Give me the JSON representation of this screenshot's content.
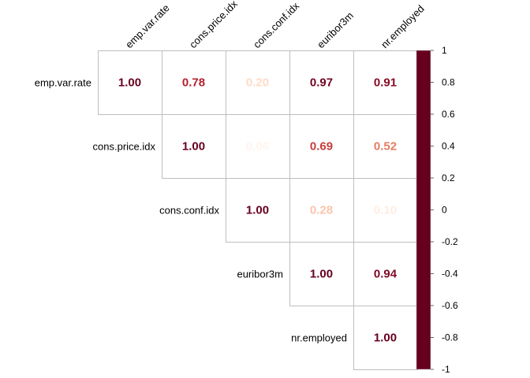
{
  "chart_data": {
    "type": "heatmap",
    "subtype": "upper-triangular correlation matrix",
    "variables": [
      "emp.var.rate",
      "cons.price.idx",
      "cons.conf.idx",
      "euribor3m",
      "nr.employed"
    ],
    "matrix": [
      [
        1.0,
        0.78,
        0.2,
        0.97,
        0.91
      ],
      [
        null,
        1.0,
        0.06,
        0.69,
        0.52
      ],
      [
        null,
        null,
        1.0,
        0.28,
        0.1
      ],
      [
        null,
        null,
        null,
        1.0,
        0.94
      ],
      [
        null,
        null,
        null,
        null,
        1.0
      ]
    ],
    "value_labels": [
      [
        "1.00",
        "0.78",
        "0.20",
        "0.97",
        "0.91"
      ],
      [
        "",
        "1.00",
        "0.06",
        "0.69",
        "0.52"
      ],
      [
        "",
        "",
        "1.00",
        "0.28",
        "0.10"
      ],
      [
        "",
        "",
        "",
        "1.00",
        "0.94"
      ],
      [
        "",
        "",
        "",
        "",
        "1.00"
      ]
    ],
    "color_scale": {
      "range": [
        -1,
        1
      ],
      "ticks": [
        "1",
        "0.8",
        "0.6",
        "0.4",
        "0.2",
        "0",
        "-0.2",
        "-0.4",
        "-0.6",
        "-0.8",
        "-1"
      ],
      "colors": [
        "#67001F",
        "#B2182B",
        "#D6604D",
        "#F4A582",
        "#FDDBC7",
        "#FFFFFF",
        "#D1E5F0",
        "#92C5DE",
        "#4393C3",
        "#2166AC",
        "#053061"
      ]
    },
    "legend_position": "right",
    "grid": true,
    "title": ""
  }
}
